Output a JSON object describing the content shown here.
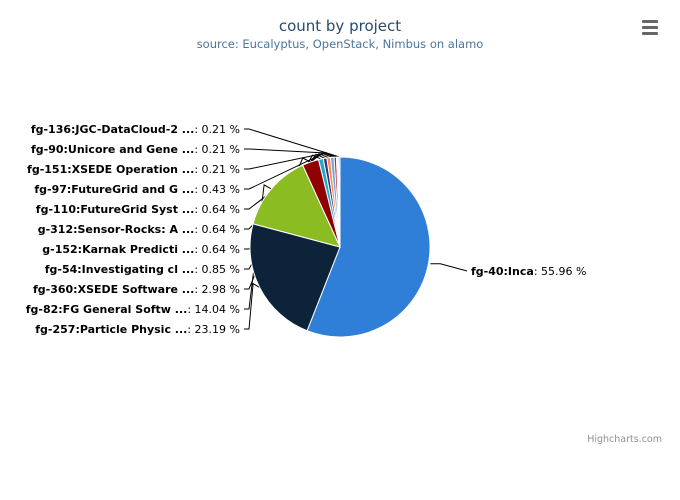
{
  "title": "count by project",
  "subtitle": "source: Eucalyptus, OpenStack, Nimbus on alamo",
  "credits": "Highcharts.com",
  "menu_icon": "hamburger-menu-icon",
  "chart_data": {
    "type": "pie",
    "title": "count by project",
    "subtitle": "source: Eucalyptus, OpenStack, Nimbus on alamo",
    "label_format": "{name}: {percent} %",
    "slices": [
      {
        "name": "fg-40:Inca",
        "percent": "55.96",
        "value": 55.96,
        "color": "#2f7ed8"
      },
      {
        "name": "fg-257:Particle Physic ...",
        "percent": "23.19",
        "value": 23.19,
        "color": "#0d233a"
      },
      {
        "name": "fg-82:FG General Softw ...",
        "percent": "14.04",
        "value": 14.04,
        "color": "#8bbc21"
      },
      {
        "name": "fg-360:XSEDE Software ...",
        "percent": "2.98",
        "value": 2.98,
        "color": "#910000"
      },
      {
        "name": "fg-54:Investigating cl ...",
        "percent": "0.85",
        "value": 0.85,
        "color": "#1aadce"
      },
      {
        "name": "g-152:Karnak Predicti ...",
        "percent": "0.64",
        "value": 0.64,
        "color": "#492970"
      },
      {
        "name": "g-312:Sensor-Rocks: A ...",
        "percent": "0.64",
        "value": 0.64,
        "color": "#f28f43"
      },
      {
        "name": "fg-110:FutureGrid Syst ...",
        "percent": "0.64",
        "value": 0.64,
        "color": "#77a1e5"
      },
      {
        "name": "fg-97:FutureGrid and G ...",
        "percent": "0.43",
        "value": 0.43,
        "color": "#c42525"
      },
      {
        "name": "fg-151:XSEDE Operation ...",
        "percent": "0.21",
        "value": 0.21,
        "color": "#a6c96a"
      },
      {
        "name": "fg-90:Unicore and Gene ...",
        "percent": "0.21",
        "value": 0.21,
        "color": "#2f7ed8"
      },
      {
        "name": "fg-136:JGC-DataCloud-2 ...",
        "percent": "0.21",
        "value": 0.21,
        "color": "#0d233a"
      }
    ]
  }
}
